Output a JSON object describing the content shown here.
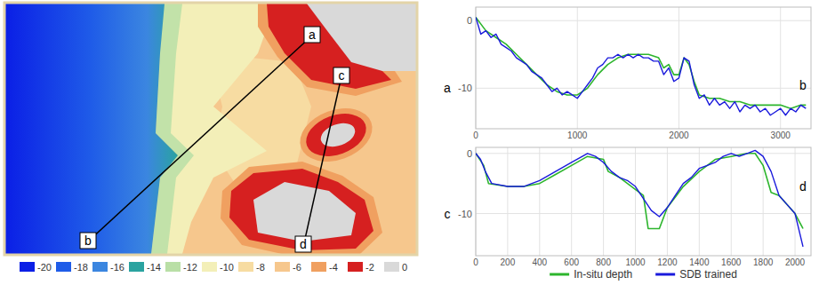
{
  "chart_data": [
    {
      "type": "map",
      "color_bar": {
        "ticks": [
          -20,
          -18,
          -16,
          -14,
          -12,
          -10,
          -8,
          -6,
          -4,
          -2,
          0
        ],
        "colors": [
          "#0b1fe6",
          "#1f5ce8",
          "#3b86e0",
          "#2aa3a0",
          "#b9dfa6",
          "#f3efb8",
          "#f7dca2",
          "#f6c78d",
          "#f0a060",
          "#d62020",
          "#d9d9d9"
        ]
      },
      "labels": [
        "a",
        "b",
        "c",
        "d"
      ]
    },
    {
      "type": "line",
      "xlim": [
        0,
        3300
      ],
      "ylim": [
        -16,
        2
      ],
      "xticks": [
        0,
        1000,
        2000,
        3000
      ],
      "yticks": [
        -10,
        0
      ],
      "grid": true,
      "annotations": [
        "a",
        "b"
      ],
      "series": [
        {
          "color": "#2db52d",
          "x": [
            0,
            100,
            200,
            300,
            400,
            500,
            600,
            700,
            800,
            900,
            1000,
            1100,
            1200,
            1300,
            1400,
            1500,
            1600,
            1700,
            1800,
            1850,
            1900,
            1950,
            2000,
            2050,
            2100,
            2150,
            2200,
            2300,
            2400,
            2500,
            2600,
            2700,
            2800,
            2900,
            3000,
            3100,
            3200,
            3250
          ],
          "values": [
            0.5,
            -1.5,
            -2.5,
            -3.5,
            -5,
            -6.5,
            -8,
            -9.5,
            -10.5,
            -11,
            -11,
            -10,
            -8,
            -6.5,
            -5.5,
            -5,
            -5,
            -5,
            -5.5,
            -7,
            -6.5,
            -8,
            -8,
            -5.5,
            -6.5,
            -9,
            -11,
            -11.5,
            -11.5,
            -12,
            -12,
            -12.5,
            -12.5,
            -12.5,
            -12.5,
            -13,
            -12.5,
            -12.5
          ]
        },
        {
          "color": "#1a1adc",
          "x": [
            0,
            50,
            100,
            150,
            200,
            250,
            300,
            350,
            400,
            450,
            500,
            550,
            600,
            650,
            700,
            750,
            800,
            850,
            900,
            950,
            1000,
            1050,
            1100,
            1150,
            1200,
            1250,
            1300,
            1350,
            1400,
            1450,
            1500,
            1550,
            1600,
            1650,
            1700,
            1750,
            1800,
            1850,
            1900,
            1950,
            2000,
            2050,
            2100,
            2150,
            2200,
            2250,
            2300,
            2350,
            2400,
            2450,
            2500,
            2550,
            2600,
            2650,
            2700,
            2750,
            2800,
            2850,
            2900,
            2950,
            3000,
            3050,
            3100,
            3150,
            3200,
            3250
          ],
          "values": [
            0.5,
            -2,
            -1.5,
            -2.5,
            -2,
            -3.5,
            -4,
            -4.5,
            -5.5,
            -6,
            -6.5,
            -7.5,
            -8,
            -8.5,
            -9.5,
            -10.5,
            -10,
            -11,
            -10.5,
            -11,
            -11.5,
            -10.5,
            -9.5,
            -8.5,
            -7,
            -6.5,
            -5.5,
            -5.5,
            -5,
            -5.5,
            -5,
            -5.5,
            -5,
            -5.5,
            -5.5,
            -6,
            -6,
            -8,
            -7,
            -9,
            -8.5,
            -5.5,
            -6,
            -9.5,
            -11.5,
            -11,
            -12.5,
            -11.5,
            -12.5,
            -12,
            -13,
            -12,
            -13.5,
            -12.5,
            -13,
            -12.5,
            -13.5,
            -13,
            -14,
            -13.5,
            -13,
            -14,
            -13,
            -13.5,
            -12.5,
            -13
          ]
        }
      ]
    },
    {
      "type": "line",
      "xlim": [
        0,
        2100
      ],
      "ylim": [
        -17,
        1
      ],
      "xticks": [
        0,
        200,
        400,
        600,
        800,
        1000,
        1200,
        1400,
        1600,
        1800,
        2000
      ],
      "yticks": [
        -10,
        0
      ],
      "grid": true,
      "annotations": [
        "c",
        "d"
      ],
      "legend": "bottom",
      "series": [
        {
          "name": "In-situ depth",
          "color": "#2db52d",
          "x": [
            0,
            50,
            80,
            200,
            300,
            400,
            500,
            600,
            700,
            800,
            830,
            900,
            1000,
            1050,
            1080,
            1150,
            1200,
            1300,
            1400,
            1500,
            1600,
            1700,
            1750,
            1800,
            1850,
            1900,
            2000,
            2050
          ],
          "values": [
            0,
            -2,
            -5,
            -5.5,
            -5.5,
            -5,
            -3.5,
            -2,
            -0.5,
            -1,
            -3,
            -4,
            -6,
            -7,
            -12.5,
            -12.5,
            -9,
            -5.5,
            -3,
            -1,
            -0.5,
            0,
            0,
            -2,
            -6.5,
            -7,
            -10,
            -12.5
          ]
        },
        {
          "name": "SDB trained",
          "color": "#1a1adc",
          "x": [
            0,
            30,
            60,
            100,
            200,
            300,
            400,
            500,
            600,
            700,
            750,
            800,
            850,
            900,
            950,
            1000,
            1050,
            1100,
            1150,
            1200,
            1250,
            1300,
            1350,
            1400,
            1450,
            1500,
            1550,
            1600,
            1650,
            1700,
            1750,
            1800,
            1850,
            1900,
            1950,
            2000,
            2050
          ],
          "values": [
            0,
            -1,
            -3,
            -5,
            -5.5,
            -5.5,
            -4.5,
            -3,
            -1.5,
            0,
            -0.5,
            -1.5,
            -3,
            -4,
            -4.5,
            -5.5,
            -7.5,
            -9.5,
            -10.5,
            -9,
            -7,
            -5,
            -4,
            -2.5,
            -2,
            -1.5,
            -0.5,
            0,
            -0.5,
            0,
            0.5,
            -0.5,
            -3,
            -7,
            -8.5,
            -10,
            -15.5
          ]
        }
      ]
    }
  ]
}
